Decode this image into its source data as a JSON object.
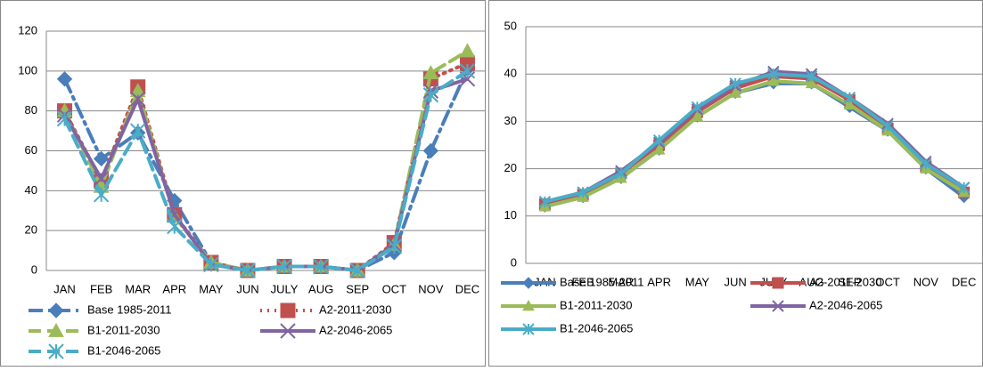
{
  "chart_data": [
    {
      "type": "line",
      "categories": [
        "JAN",
        "FEB",
        "MAR",
        "APR",
        "MAY",
        "JUN",
        "JULY",
        "AUG",
        "SEP",
        "OCT",
        "NOV",
        "DEC"
      ],
      "ylim": [
        0,
        120
      ],
      "yticks": [
        0,
        20,
        40,
        60,
        80,
        100,
        120
      ],
      "grid": true,
      "series": [
        {
          "name": "Base 1985-2011",
          "color": "#4a7ebb",
          "dash": "dashdot",
          "marker": "diamond",
          "values": [
            96,
            56,
            69,
            35,
            4,
            0,
            2,
            2,
            0,
            9,
            60,
            101
          ]
        },
        {
          "name": "A2-2011-2030",
          "color": "#c0504d",
          "dash": "dot",
          "marker": "square",
          "values": [
            80,
            45,
            92,
            28,
            4,
            0,
            2,
            2,
            0,
            14,
            96,
            104
          ]
        },
        {
          "name": "B1-2011-2030",
          "color": "#9bbb59",
          "dash": "dash",
          "marker": "triangle",
          "values": [
            80,
            42,
            90,
            27,
            4,
            0,
            2,
            2,
            0,
            13,
            99,
            110
          ]
        },
        {
          "name": "A2-2046-2065",
          "color": "#8064a2",
          "dash": "solid",
          "marker": "x",
          "values": [
            78,
            46,
            86,
            28,
            3,
            0,
            2,
            2,
            0,
            13,
            90,
            96
          ]
        },
        {
          "name": "B1-2046-2065",
          "color": "#4bacc6",
          "dash": "dash",
          "marker": "star",
          "values": [
            76,
            38,
            70,
            22,
            3,
            0,
            2,
            2,
            0,
            12,
            88,
            100
          ]
        }
      ]
    },
    {
      "type": "line",
      "categories": [
        "JAN",
        "FEB",
        "MAR",
        "APR",
        "MAY",
        "JUN",
        "JULY",
        "AUG",
        "SEP",
        "OCT",
        "NOV",
        "DEC"
      ],
      "ylim": [
        0,
        50
      ],
      "yticks": [
        0,
        10,
        20,
        30,
        40,
        50
      ],
      "grid": true,
      "series": [
        {
          "name": "Base 1985-2011",
          "color": "#4a7ebb",
          "dash": "solid",
          "marker": "diamond",
          "values": [
            12,
            14,
            18,
            24,
            31,
            36,
            38,
            38,
            33,
            28,
            20,
            14
          ]
        },
        {
          "name": "A2-2011-2030",
          "color": "#c0504d",
          "dash": "solid",
          "marker": "square",
          "values": [
            12.5,
            14.5,
            19,
            25,
            32,
            37,
            39.5,
            39,
            34.5,
            28.5,
            20.5,
            15
          ]
        },
        {
          "name": "B1-2011-2030",
          "color": "#9bbb59",
          "dash": "solid",
          "marker": "triangle",
          "values": [
            12,
            14,
            18,
            24,
            31,
            36,
            38.5,
            38,
            33.5,
            28,
            20,
            15
          ]
        },
        {
          "name": "A2-2046-2065",
          "color": "#8064a2",
          "dash": "solid",
          "marker": "x",
          "values": [
            13,
            15,
            19.5,
            25.5,
            32.5,
            37.5,
            40.5,
            40,
            35,
            29.5,
            21.5,
            16
          ]
        },
        {
          "name": "B1-2046-2065",
          "color": "#4bacc6",
          "dash": "solid",
          "marker": "star",
          "values": [
            13,
            15,
            19,
            26,
            33,
            38,
            40,
            39.5,
            35,
            29,
            21,
            16
          ]
        }
      ]
    }
  ]
}
